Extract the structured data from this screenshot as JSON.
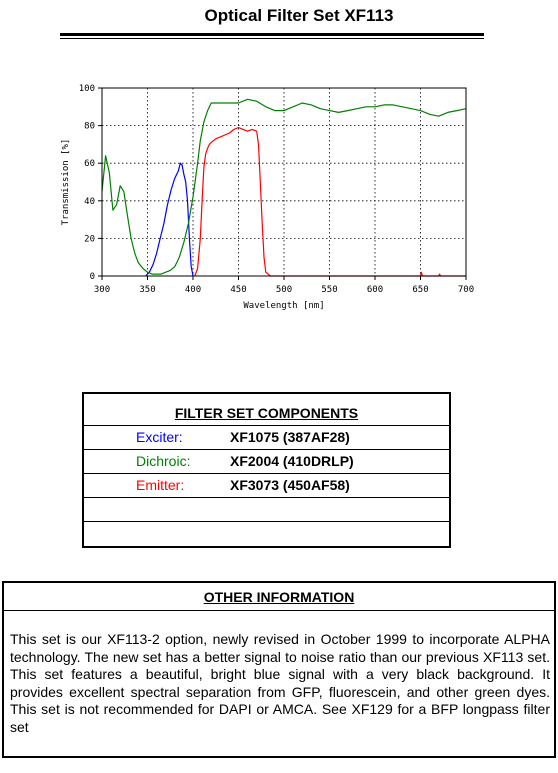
{
  "page": {
    "title": "Optical Filter Set XF113"
  },
  "colors": {
    "exciter": "#0000ff",
    "dichroic": "#008000",
    "emitter": "#ff0000"
  },
  "chart_data": {
    "type": "line",
    "title": "",
    "xlabel": "Wavelength [nm]",
    "ylabel": "Transmission [%]",
    "xlim": [
      300,
      700
    ],
    "ylim": [
      0,
      100
    ],
    "grid": true,
    "x_ticks": [
      "300",
      "350",
      "400",
      "450",
      "500",
      "550",
      "600",
      "650",
      "700"
    ],
    "y_ticks": [
      "0",
      "20",
      "40",
      "60",
      "80",
      "100"
    ],
    "series": [
      {
        "color": "#0000ff",
        "x": [
          348,
          352,
          356,
          360,
          364,
          368,
          372,
          376,
          380,
          384,
          386,
          388,
          390,
          392,
          394,
          396,
          398,
          400
        ],
        "y": [
          0,
          2,
          6,
          12,
          20,
          28,
          38,
          46,
          52,
          56,
          60,
          59,
          54,
          50,
          40,
          20,
          5,
          0
        ]
      },
      {
        "color": "#008000",
        "x": [
          300,
          304,
          308,
          312,
          316,
          320,
          324,
          328,
          332,
          336,
          340,
          345,
          350,
          355,
          360,
          365,
          370,
          375,
          380,
          385,
          390,
          395,
          400,
          405,
          408,
          412,
          416,
          420,
          430,
          440,
          450,
          460,
          470,
          480,
          490,
          500,
          510,
          520,
          530,
          540,
          550,
          560,
          570,
          580,
          590,
          600,
          610,
          620,
          630,
          640,
          650,
          660,
          670,
          680,
          690,
          700
        ],
        "y": [
          45,
          64,
          55,
          35,
          38,
          48,
          45,
          32,
          20,
          12,
          7,
          4,
          2,
          1,
          1,
          1,
          2,
          3,
          5,
          10,
          18,
          28,
          42,
          60,
          72,
          82,
          88,
          92,
          92,
          92,
          92,
          94,
          93,
          90,
          88,
          88,
          90,
          92,
          91,
          89,
          88,
          87,
          88,
          89,
          90,
          90,
          91,
          91,
          90,
          89,
          88,
          86,
          85,
          87,
          88,
          89
        ]
      },
      {
        "color": "#ff0000",
        "x": [
          402,
          405,
          408,
          410,
          412,
          414,
          416,
          418,
          420,
          425,
          430,
          435,
          440,
          445,
          450,
          455,
          460,
          465,
          470,
          472,
          474,
          476,
          478,
          480,
          485,
          500,
          600,
          650,
          651,
          652,
          653,
          670,
          671,
          672,
          700
        ],
        "y": [
          0,
          4,
          20,
          40,
          58,
          65,
          68,
          70,
          71,
          73,
          74,
          75,
          76,
          78,
          79,
          78,
          77,
          78,
          77,
          70,
          50,
          28,
          10,
          2,
          0,
          0,
          0,
          0,
          2,
          0,
          0,
          0,
          1,
          0,
          0
        ]
      }
    ]
  },
  "components": {
    "header": "FILTER SET COMPONENTS",
    "rows": [
      {
        "role": "Exciter:",
        "part": "XF1075 (387AF28)",
        "color": "#0000ff"
      },
      {
        "role": "Dichroic:",
        "part": "XF2004 (410DRLP)",
        "color": "#008000"
      },
      {
        "role": "Emitter:",
        "part": "XF3073 (450AF58)",
        "color": "#ff0000"
      },
      {
        "role": "",
        "part": ""
      },
      {
        "role": "",
        "part": ""
      }
    ]
  },
  "other_info": {
    "header": "OTHER INFORMATION",
    "body": "This set is our XF113-2 option, newly revised in October 1999 to incorporate ALPHA technology. The new set has a better signal to noise ratio than our previous XF113 set. This set features a beautiful, bright blue signal with a very black background. It provides excellent spectral separation from GFP, fluorescein, and other green dyes. This set is not recommended for DAPI or AMCA. See XF129 for a BFP longpass filter set"
  }
}
